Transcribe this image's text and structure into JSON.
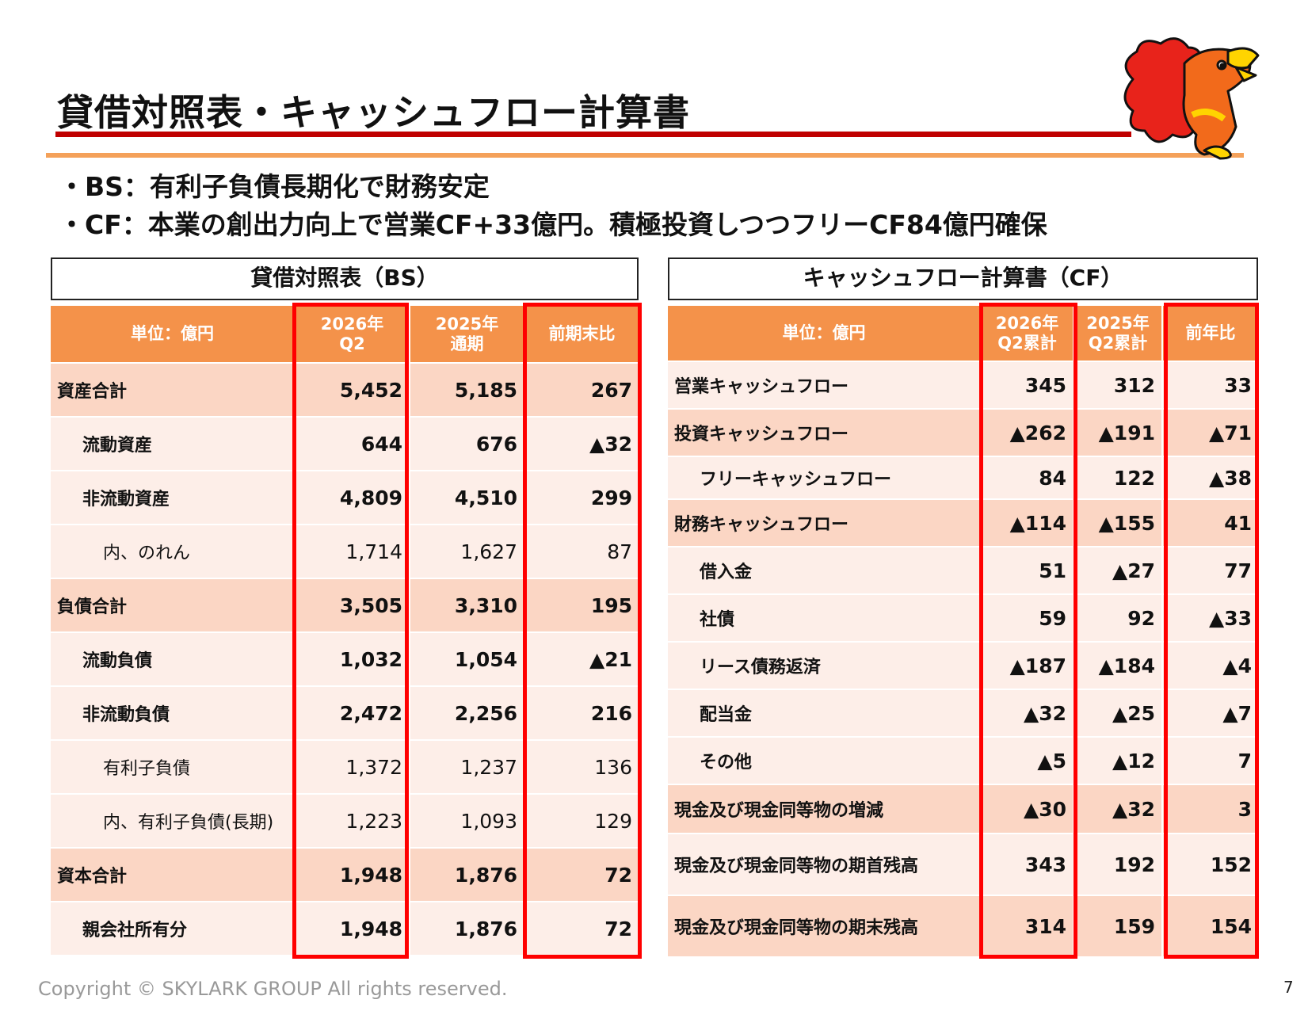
{
  "page": {
    "title": "貸借対照表・キャッシュフロー計算書",
    "bullets": [
      "・BS：有利子負債長期化で財務安定",
      "・CF：本業の創出力向上で営業CF+33億円。積極投資しつつフリーCF84億円確保"
    ],
    "copyright": "Copyright © SKYLARK GROUP All rights reserved.",
    "page_number": "7"
  },
  "bs": {
    "heading": "貸借対照表（BS）",
    "unit": "単位：億円",
    "col1": [
      "2026年",
      "Q2"
    ],
    "col2": [
      "2025年",
      "通期"
    ],
    "col3": "前期末比",
    "rows": [
      {
        "label": "資産合計",
        "v1": "5,452",
        "v2": "5,185",
        "v3": "267"
      },
      {
        "label": "流動資産",
        "v1": "644",
        "v2": "676",
        "v3": "▲32"
      },
      {
        "label": "非流動資産",
        "v1": "4,809",
        "v2": "4,510",
        "v3": "299"
      },
      {
        "label": "内、のれん",
        "v1": "1,714",
        "v2": "1,627",
        "v3": "87"
      },
      {
        "label": "負債合計",
        "v1": "3,505",
        "v2": "3,310",
        "v3": "195"
      },
      {
        "label": "流動負債",
        "v1": "1,032",
        "v2": "1,054",
        "v3": "▲21"
      },
      {
        "label": "非流動負債",
        "v1": "2,472",
        "v2": "2,256",
        "v3": "216"
      },
      {
        "label": "有利子負債",
        "v1": "1,372",
        "v2": "1,237",
        "v3": "136"
      },
      {
        "label": "内、有利子負債(長期)",
        "v1": "1,223",
        "v2": "1,093",
        "v3": "129"
      },
      {
        "label": "資本合計",
        "v1": "1,948",
        "v2": "1,876",
        "v3": "72"
      },
      {
        "label": "親会社所有分",
        "v1": "1,948",
        "v2": "1,876",
        "v3": "72"
      }
    ]
  },
  "cf": {
    "heading": "キャッシュフロー計算書（CF）",
    "unit": "単位：億円",
    "col1": [
      "2026年",
      "Q2累計"
    ],
    "col2": [
      "2025年",
      "Q2累計"
    ],
    "col3": "前年比",
    "rows": [
      {
        "label": "営業キャッシュフロー",
        "v1": "345",
        "v2": "312",
        "v3": "33"
      },
      {
        "label": "投資キャッシュフロー",
        "v1": "▲262",
        "v2": "▲191",
        "v3": "▲71"
      },
      {
        "label": "フリーキャッシュフロー",
        "v1": "84",
        "v2": "122",
        "v3": "▲38"
      },
      {
        "label": "財務キャッシュフロー",
        "v1": "▲114",
        "v2": "▲155",
        "v3": "41"
      },
      {
        "label": "借入金",
        "v1": "51",
        "v2": "▲27",
        "v3": "77"
      },
      {
        "label": "社債",
        "v1": "59",
        "v2": "92",
        "v3": "▲33"
      },
      {
        "label": "リース債務返済",
        "v1": "▲187",
        "v2": "▲184",
        "v3": "▲4"
      },
      {
        "label": "配当金",
        "v1": "▲32",
        "v2": "▲25",
        "v3": "▲7"
      },
      {
        "label": "その他",
        "v1": "▲5",
        "v2": "▲12",
        "v3": "7"
      },
      {
        "label": "現金及び現金同等物の増減",
        "v1": "▲30",
        "v2": "▲32",
        "v3": "3"
      },
      {
        "label": "現金及び現金同等物の期首残高",
        "v1": "343",
        "v2": "192",
        "v3": "152"
      },
      {
        "label": "現金及び現金同等物の期末残高",
        "v1": "314",
        "v2": "159",
        "v3": "154"
      }
    ]
  }
}
